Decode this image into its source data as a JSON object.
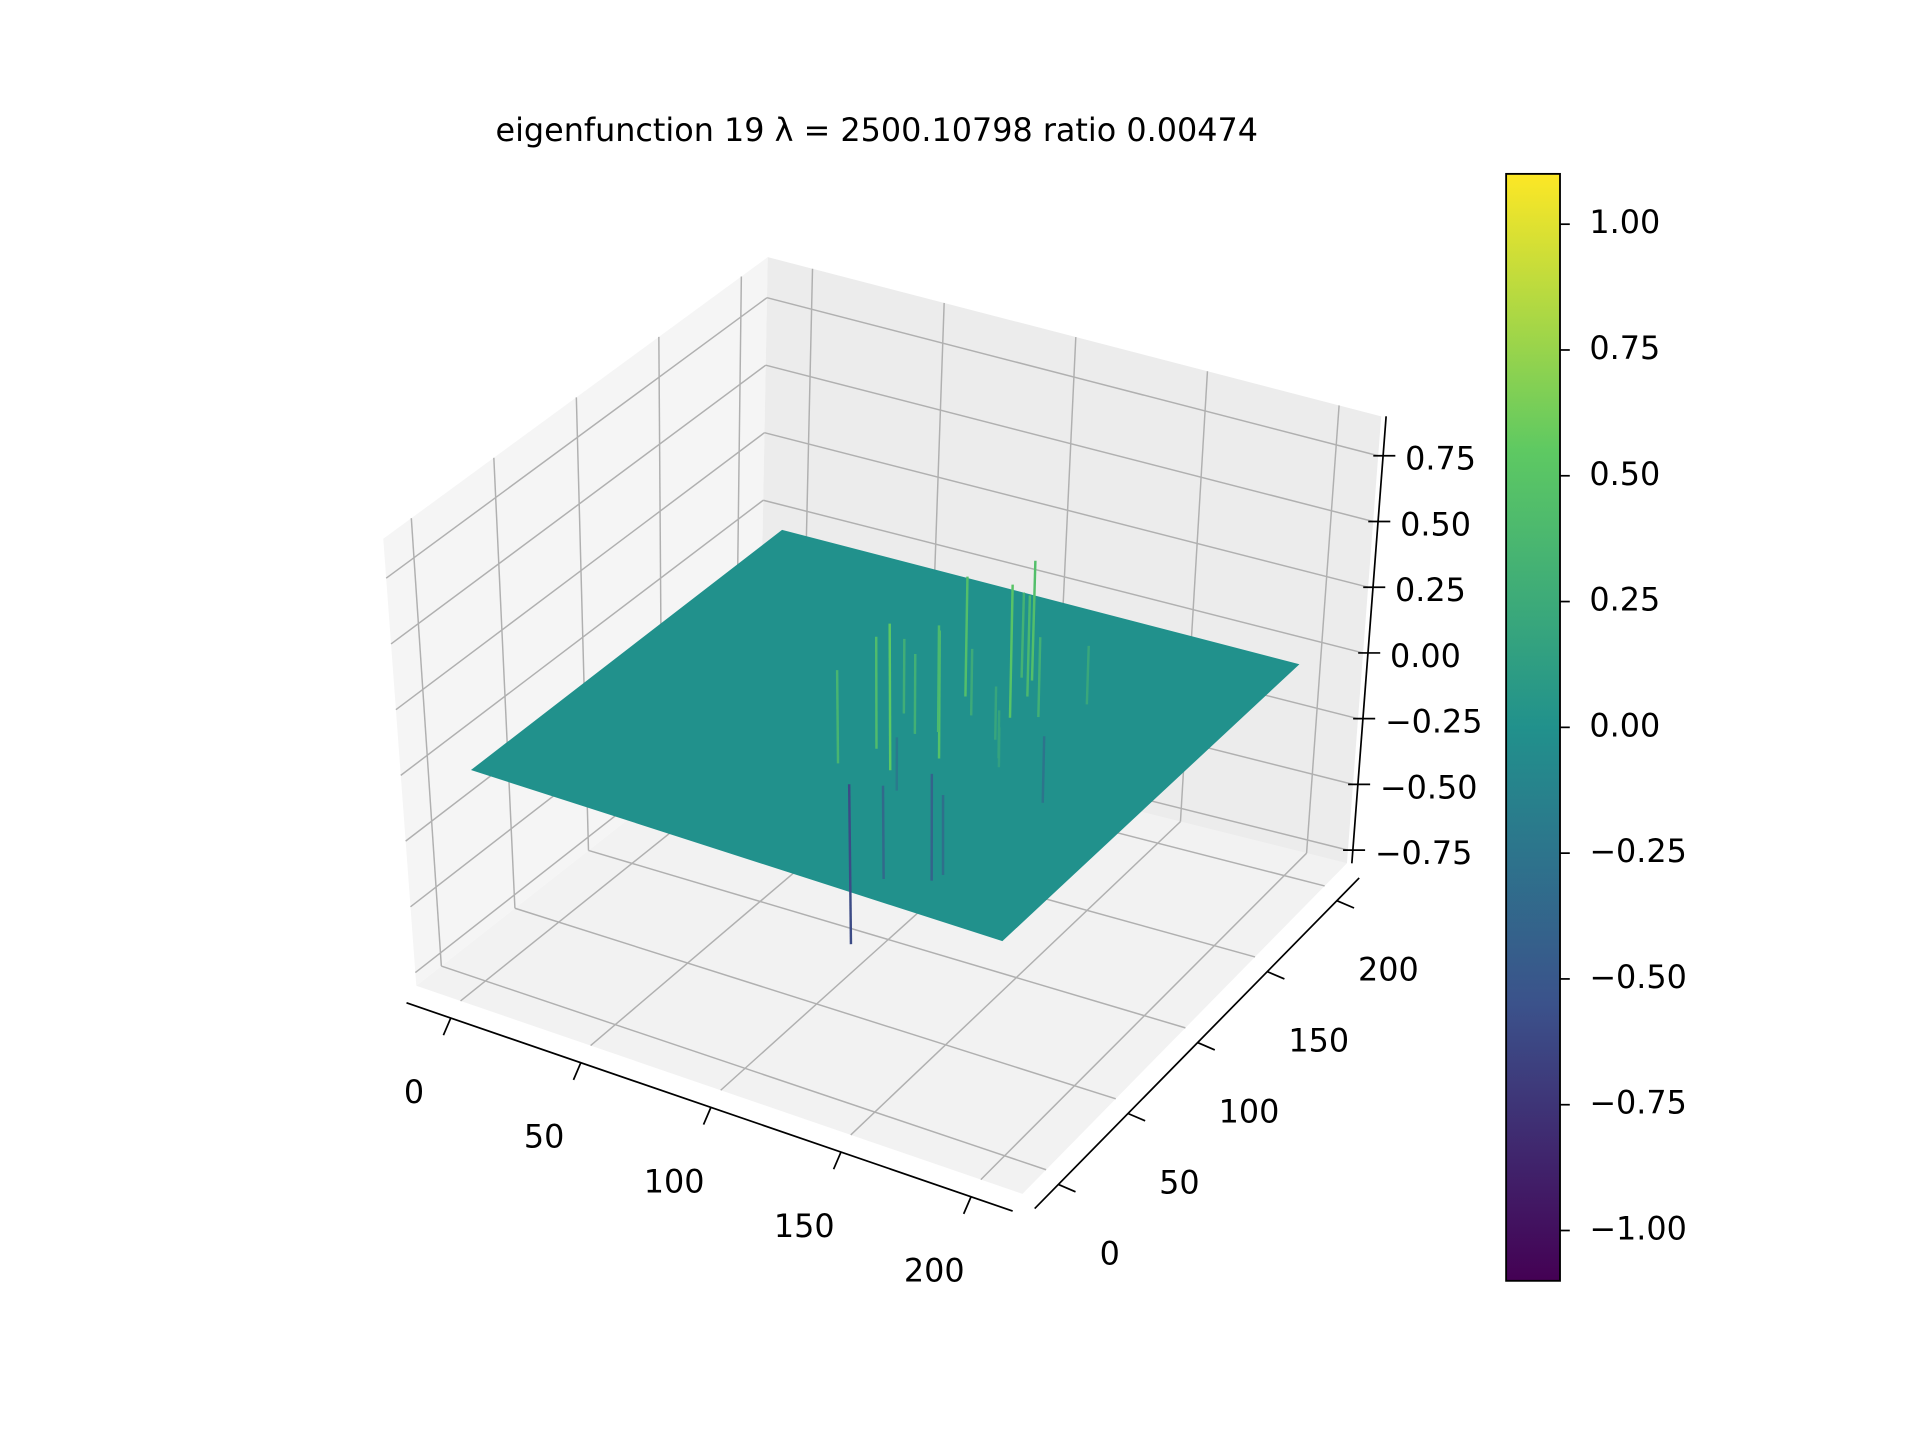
{
  "chart_data": {
    "type": "surface3d",
    "title": "eigenfunction 19  λ = 2500.10798 ratio 0.00474",
    "xlim": [
      -17,
      216
    ],
    "ylim": [
      -17,
      216
    ],
    "zlim": [
      -0.8,
      0.9
    ],
    "xticks": [
      0,
      50,
      100,
      150,
      200
    ],
    "yticks": [
      0,
      50,
      100,
      150,
      200
    ],
    "zticks": [
      {
        "value": -0.75,
        "label": "−0.75"
      },
      {
        "value": -0.5,
        "label": "−0.50"
      },
      {
        "value": -0.25,
        "label": "−0.25"
      },
      {
        "value": 0,
        "label": "0.00"
      },
      {
        "value": 0.25,
        "label": "0.25"
      },
      {
        "value": 0.5,
        "label": "0.50"
      },
      {
        "value": 0.75,
        "label": "0.75"
      }
    ],
    "grid": true,
    "colormap": [
      "#440154",
      "#3b528b",
      "#21918c",
      "#5ec962",
      "#fde725"
    ],
    "surface_extent": {
      "x": [
        0,
        200
      ],
      "y": [
        0,
        200
      ],
      "z": 0
    },
    "spikes": {
      "x": [
        98,
        104,
        110,
        115,
        120,
        125,
        130,
        135,
        140,
        145,
        150,
        108,
        118,
        128,
        138,
        148,
        100,
        112,
        122,
        132,
        142,
        106,
        116,
        126
      ],
      "y": [
        70,
        85,
        100,
        75,
        120,
        90,
        140,
        110,
        130,
        95,
        145,
        60,
        65,
        80,
        70,
        120,
        110,
        130,
        150,
        125,
        100,
        95,
        105,
        150
      ],
      "z": [
        0.35,
        0.42,
        0.3,
        0.55,
        0.25,
        0.48,
        0.38,
        0.2,
        0.3,
        0.15,
        0.22,
        -0.6,
        -0.35,
        -0.4,
        -0.3,
        -0.25,
        0.28,
        0.45,
        0.32,
        0.5,
        0.18,
        -0.2,
        0.4,
        0.45
      ]
    },
    "colorbar": {
      "lim": [
        -1.1,
        1.1
      ],
      "ticks": [
        {
          "value": -1,
          "label": "−1.00"
        },
        {
          "value": -0.75,
          "label": "−0.75"
        },
        {
          "value": -0.5,
          "label": "−0.50"
        },
        {
          "value": -0.25,
          "label": "−0.25"
        },
        {
          "value": 0,
          "label": "0.00"
        },
        {
          "value": 0.25,
          "label": "0.25"
        },
        {
          "value": 0.5,
          "label": "0.50"
        },
        {
          "value": 0.75,
          "label": "0.75"
        },
        {
          "value": 1,
          "label": "1.00"
        }
      ]
    }
  }
}
